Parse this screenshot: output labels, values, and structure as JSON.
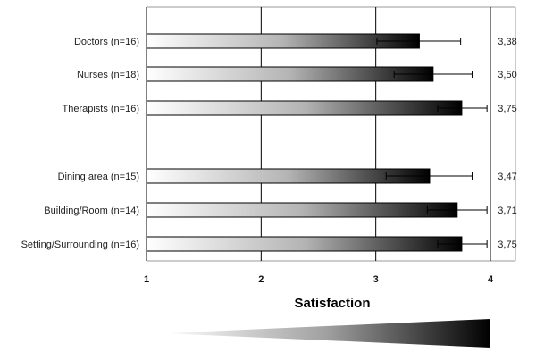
{
  "chart_data": {
    "type": "bar",
    "orientation": "horizontal",
    "categories": [
      "Doctors (n=16)",
      "Nurses (n=18)",
      "Therapists (n=16)",
      "Dining area (n=15)",
      "Building/Room (n=14)",
      "Setting/Surrounding (n=16)"
    ],
    "values": [
      3.38,
      3.5,
      3.75,
      3.47,
      3.71,
      3.75
    ],
    "value_labels": [
      "3,38",
      "3,50",
      "3,75",
      "3,47",
      "3,71",
      "3,75"
    ],
    "error_low": [
      3.01,
      3.16,
      3.54,
      3.09,
      3.45,
      3.54
    ],
    "error_high": [
      3.74,
      3.84,
      3.97,
      3.84,
      3.97,
      3.97
    ],
    "xlabel": "Satisfaction",
    "ylabel": "",
    "title": "",
    "xlim": [
      1,
      4
    ],
    "xticks": [
      "1",
      "2",
      "3",
      "4"
    ],
    "grid": "vertical",
    "group_gap_after_index": 2,
    "bar_fill": "gradient white to black",
    "colors": {
      "bar_start": "#ffffff",
      "bar_end": "#000000",
      "grid": "#000000",
      "frame": "#888888"
    }
  }
}
